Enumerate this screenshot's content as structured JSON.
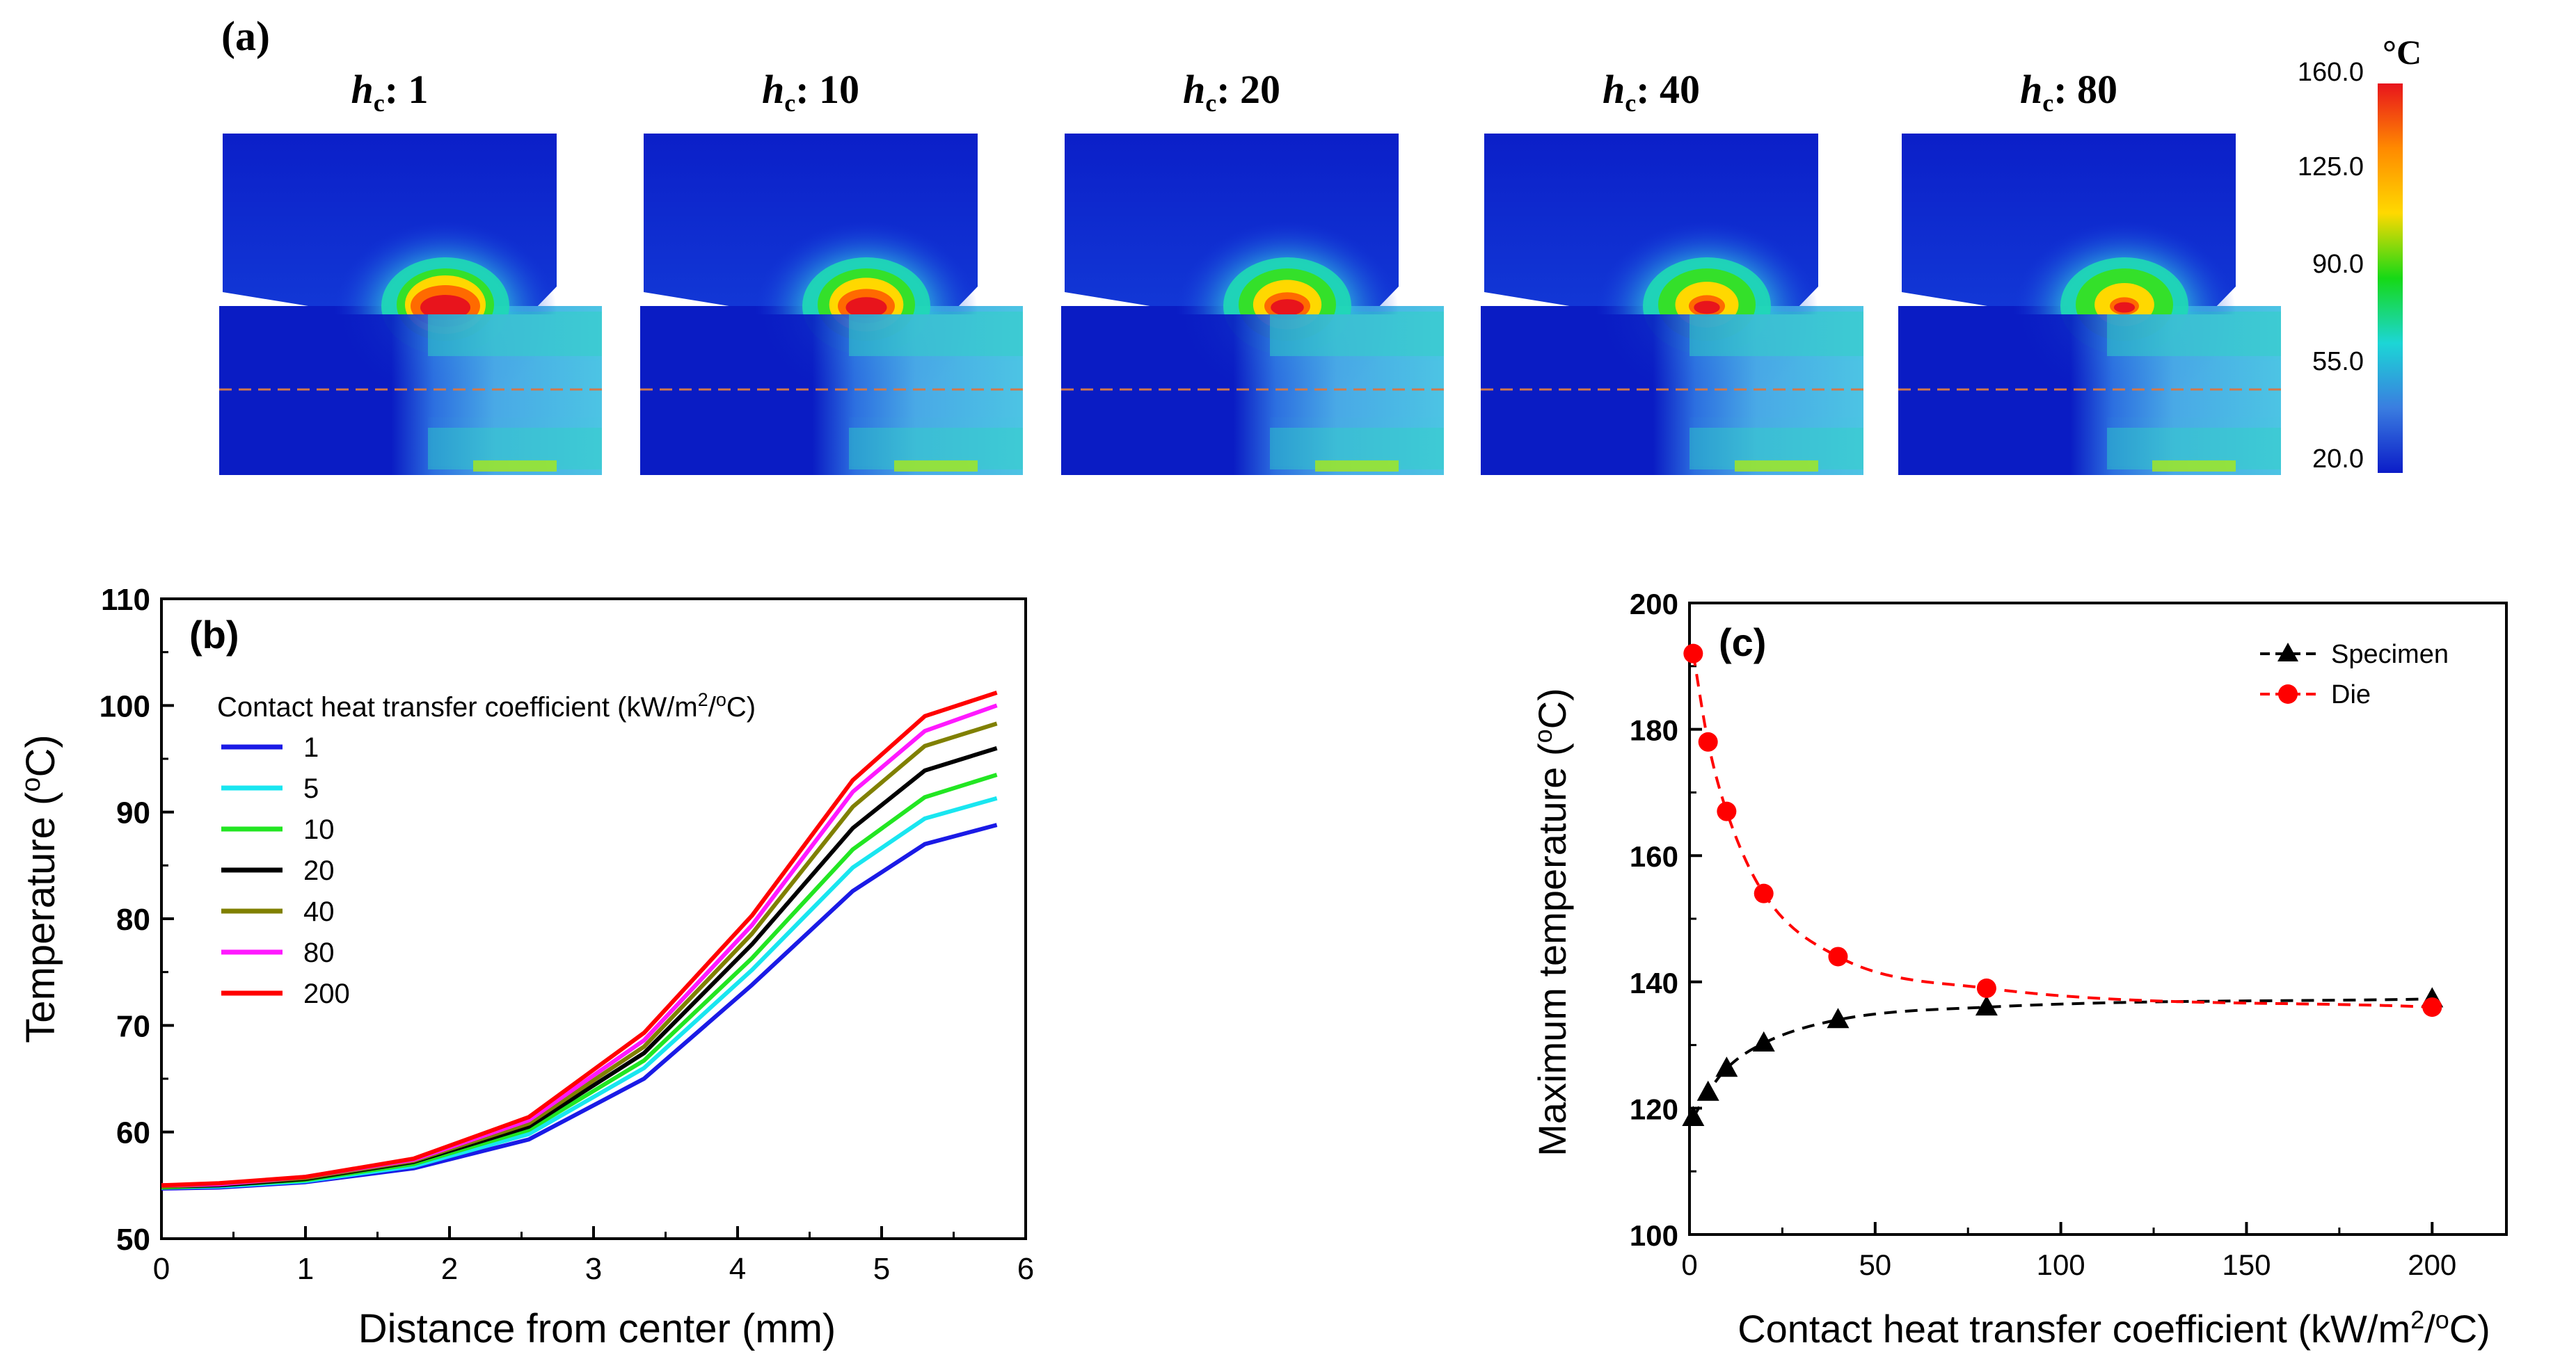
{
  "panel_a": {
    "label": "(a)",
    "panel_titles": [
      {
        "var": "h",
        "sub": "c",
        "value": ": 1"
      },
      {
        "var": "h",
        "sub": "c",
        "value": ": 10"
      },
      {
        "var": "h",
        "sub": "c",
        "value": ": 20"
      },
      {
        "var": "h",
        "sub": "c",
        "value": ": 40"
      },
      {
        "var": "h",
        "sub": "c",
        "value": ": 80"
      }
    ],
    "hotspot_intensity": [
      1.0,
      0.82,
      0.66,
      0.52,
      0.42
    ],
    "colorbar": {
      "unit": "°C",
      "ticks": [
        "160.0",
        "125.0",
        "90.0",
        "55.0",
        "20.0"
      ],
      "colors": [
        "#e8141c",
        "#ff8a00",
        "#ffd900",
        "#16d916",
        "#1cd6d6",
        "#3a7de0",
        "#0b1cc8"
      ]
    }
  },
  "chart_data": [
    {
      "id": "b",
      "type": "line",
      "panel_label": "(b)",
      "xlabel": "Distance from center (mm)",
      "ylabel": "Temperature (°C)",
      "ylabel_parts": {
        "main": "Temperature (",
        "sup": "o",
        "unit": "C)"
      },
      "xlim": [
        0,
        6
      ],
      "ylim": [
        50,
        110
      ],
      "xticks": [
        0,
        1,
        2,
        3,
        4,
        5,
        6
      ],
      "yticks": [
        50,
        60,
        70,
        80,
        90,
        100,
        110
      ],
      "legend_title": {
        "pre": "Contact heat transfer coefficient (kW/m",
        "sup1": "2",
        "mid": "/",
        "sup2": "o",
        "post": "C)"
      },
      "x": [
        0,
        0.4,
        1.0,
        1.75,
        2.55,
        3.35,
        4.1,
        4.8,
        5.3,
        5.8
      ],
      "series": [
        {
          "name": "1",
          "color": "#1a1ae6",
          "values": [
            54.7,
            54.8,
            55.3,
            56.6,
            59.3,
            65.0,
            73.8,
            82.6,
            87.0,
            88.8
          ]
        },
        {
          "name": "5",
          "color": "#19e6f0",
          "values": [
            54.8,
            54.9,
            55.4,
            56.8,
            59.8,
            66.0,
            75.2,
            84.8,
            89.4,
            91.3
          ]
        },
        {
          "name": "10",
          "color": "#22e622",
          "values": [
            54.8,
            55.0,
            55.5,
            57.0,
            60.2,
            66.7,
            76.3,
            86.5,
            91.4,
            93.5
          ]
        },
        {
          "name": "20",
          "color": "#000000",
          "values": [
            54.9,
            55.0,
            55.6,
            57.2,
            60.5,
            67.4,
            77.6,
            88.5,
            93.9,
            96.0
          ]
        },
        {
          "name": "40",
          "color": "#808000",
          "values": [
            54.9,
            55.1,
            55.7,
            57.3,
            60.8,
            68.0,
            78.6,
            90.5,
            96.2,
            98.3
          ]
        },
        {
          "name": "80",
          "color": "#ff19ff",
          "values": [
            55.0,
            55.1,
            55.8,
            57.4,
            61.1,
            68.6,
            79.4,
            91.9,
            97.6,
            100.0
          ]
        },
        {
          "name": "200",
          "color": "#ff0000",
          "values": [
            55.0,
            55.2,
            55.8,
            57.5,
            61.4,
            69.3,
            80.3,
            93.0,
            99.0,
            101.2
          ]
        }
      ]
    },
    {
      "id": "c",
      "type": "scatter",
      "panel_label": "(c)",
      "xlabel": "Contact heat transfer coefficient (kW/m²/°C)",
      "xlabel_parts": {
        "pre": "Contact heat transfer coefficient (kW/m",
        "sup1": "2",
        "mid": "/",
        "sup2": "o",
        "post": "C)"
      },
      "ylabel": "Maximum temperature (°C)",
      "ylabel_parts": {
        "main": "Maximum temperature (",
        "sup": "o",
        "unit": "C)"
      },
      "xlim": [
        0,
        220
      ],
      "ylim": [
        100,
        200
      ],
      "xticks": [
        0,
        50,
        100,
        150,
        200
      ],
      "yticks": [
        100,
        120,
        140,
        160,
        180,
        200
      ],
      "series": [
        {
          "name": "Specimen",
          "color": "#000000",
          "marker": "triangle",
          "x": [
            1,
            5,
            10,
            20,
            40,
            80,
            200
          ],
          "values": [
            118.5,
            122.5,
            126.3,
            130.3,
            134.0,
            136.0,
            137.3
          ]
        },
        {
          "name": "Die",
          "color": "#ff0000",
          "marker": "circle",
          "x": [
            1,
            5,
            10,
            20,
            40,
            80,
            200
          ],
          "values": [
            192.0,
            178.0,
            167.0,
            154.0,
            144.0,
            139.0,
            136.0
          ]
        }
      ]
    }
  ]
}
